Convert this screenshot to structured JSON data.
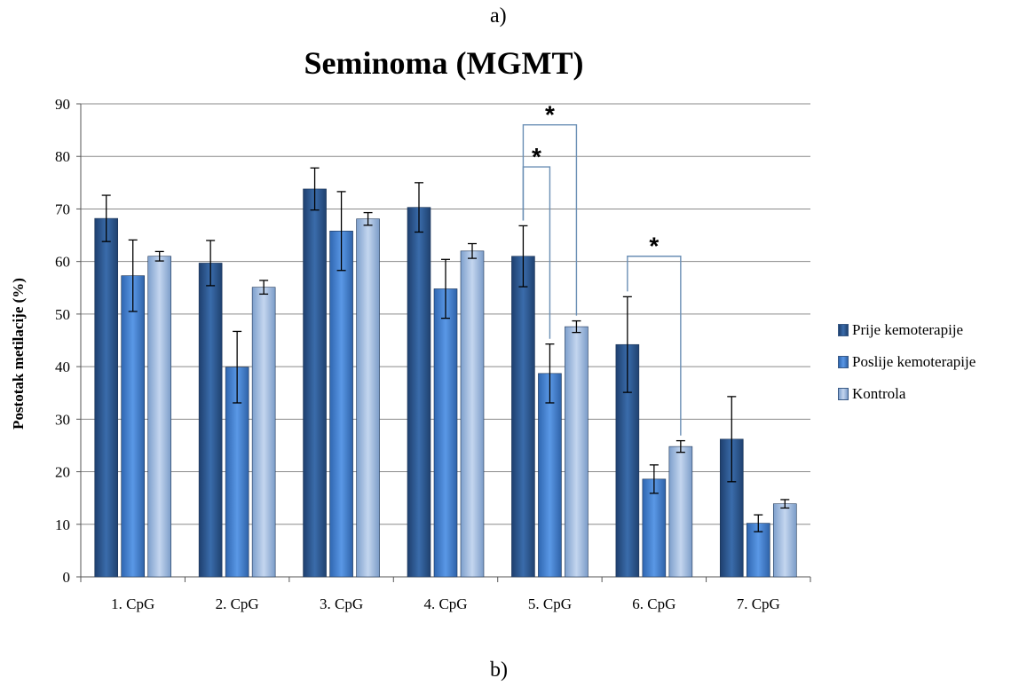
{
  "caption_top": "a)",
  "caption_bottom": "b)",
  "chart_data": {
    "type": "bar",
    "title": "Seminoma (MGMT)",
    "xlabel": "",
    "ylabel": "Postotak metilacije (%)",
    "ylim": [
      0,
      90
    ],
    "yticks": [
      0,
      10,
      20,
      30,
      40,
      50,
      60,
      70,
      80,
      90
    ],
    "grid": true,
    "legend_position": "right",
    "categories": [
      "1. CpG",
      "2. CpG",
      "3. CpG",
      "4. CpG",
      "5. CpG",
      "6. CpG",
      "7. CpG"
    ],
    "series": [
      {
        "name": "Prije kemoterapije",
        "color": "#2f5d9a",
        "values": [
          68.2,
          59.7,
          73.8,
          70.3,
          61.0,
          44.2,
          26.2
        ],
        "errors": [
          4.4,
          4.3,
          4.0,
          4.7,
          5.8,
          9.1,
          8.1
        ]
      },
      {
        "name": "Poslije kemoterapije",
        "color": "#4a86d4",
        "values": [
          57.3,
          39.9,
          65.8,
          54.8,
          38.7,
          18.6,
          10.2
        ],
        "errors": [
          6.8,
          6.8,
          7.5,
          5.6,
          5.6,
          2.7,
          1.6
        ]
      },
      {
        "name": "Kontrola",
        "color": "#9db9df",
        "values": [
          61.0,
          55.1,
          68.1,
          62.0,
          47.6,
          24.8,
          13.9
        ],
        "errors": [
          0.9,
          1.3,
          1.2,
          1.4,
          1.1,
          1.1,
          0.8
        ]
      }
    ],
    "annotations": [
      {
        "label": "*",
        "category": "5. CpG",
        "from_series": 0,
        "to_series": 1,
        "level": 78
      },
      {
        "label": "*",
        "category": "5. CpG",
        "from_series": 0,
        "to_series": 2,
        "level": 86
      },
      {
        "label": "*",
        "category": "6. CpG",
        "from_series": 0,
        "to_series": 2,
        "level": 61
      }
    ]
  }
}
